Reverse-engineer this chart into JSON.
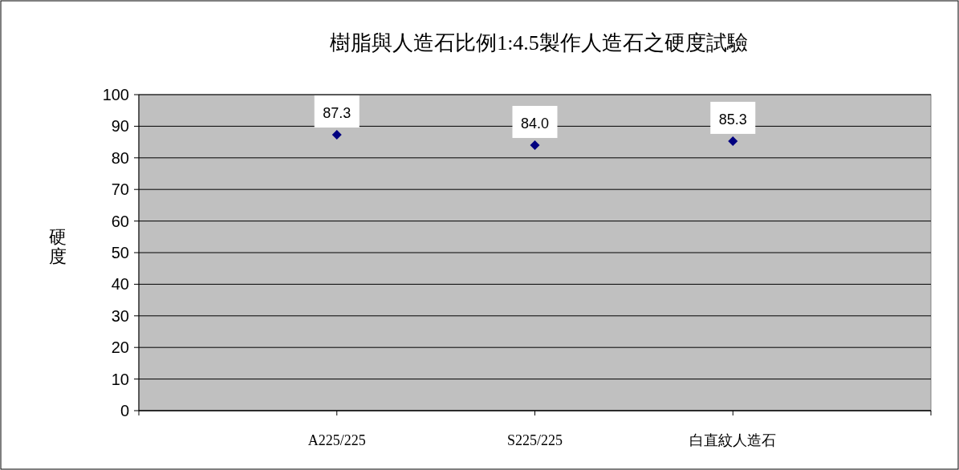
{
  "chart_data": {
    "type": "scatter",
    "title": "樹脂與人造石比例1:4.5製作人造石之硬度試驗",
    "ylabel": "硬度",
    "categories": [
      "A225/225",
      "S225/225",
      "白直紋人造石"
    ],
    "series": [
      {
        "color": "#000080",
        "values": [
          87.3,
          84.0,
          85.3
        ],
        "value_labels": [
          "87.3",
          "84.0",
          "85.3"
        ]
      }
    ],
    "ylim": [
      0,
      100
    ],
    "yticks": [
      0,
      10,
      20,
      30,
      40,
      50,
      60,
      70,
      80,
      90,
      100
    ],
    "grid": "y",
    "marker": "diamond"
  }
}
